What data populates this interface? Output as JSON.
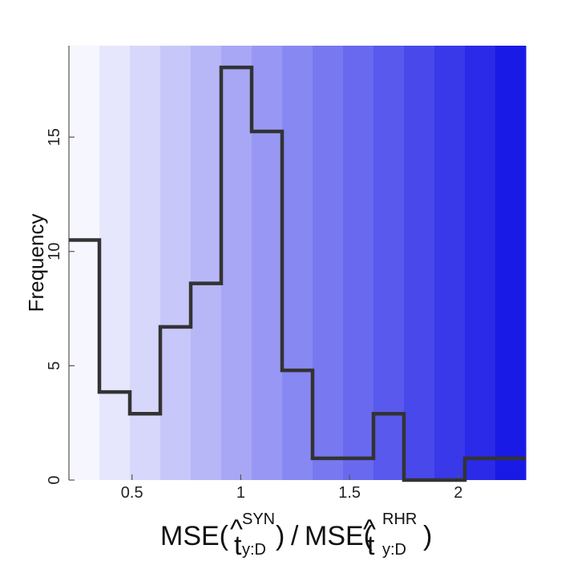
{
  "chart_data": {
    "type": "histogram",
    "bin_edges": [
      0.21,
      0.35,
      0.49,
      0.63,
      0.77,
      0.91,
      1.05,
      1.19,
      1.33,
      1.47,
      1.61,
      1.75,
      1.89,
      2.03,
      2.17,
      2.31
    ],
    "values": [
      10.5,
      3.85,
      2.9,
      6.7,
      8.6,
      18.05,
      15.25,
      4.8,
      0.95,
      0.95,
      2.9,
      0,
      0,
      0.95,
      0.95
    ],
    "xlim": [
      0.21,
      2.31
    ],
    "ylim": [
      0,
      19
    ],
    "xticks": [
      0.5,
      1,
      1.5,
      2
    ],
    "xtick_labels": [
      "0.5",
      "1",
      "1.5",
      "2"
    ],
    "yticks": [
      0,
      5,
      10,
      15
    ],
    "ytick_labels": [
      "0",
      "5",
      "10",
      "15"
    ],
    "ylabel": "Frequency",
    "xlabel": {
      "left_main": "MSE(",
      "left_var": "t",
      "left_hat": "^",
      "left_sup": "SYN",
      "left_sub": "y:D",
      "left_close": ")",
      "divider": "/",
      "right_main": "MSE(",
      "right_var": "t",
      "right_hat": "^",
      "right_sup": "RHR",
      "right_sub": "y:D",
      "right_close": ")"
    },
    "background_gradient": {
      "type": "vertical-bands",
      "start_color": "#f6f6fe",
      "end_color": "#1a1ae6"
    },
    "line_color": "#333333",
    "grid": false,
    "legend": "none"
  }
}
